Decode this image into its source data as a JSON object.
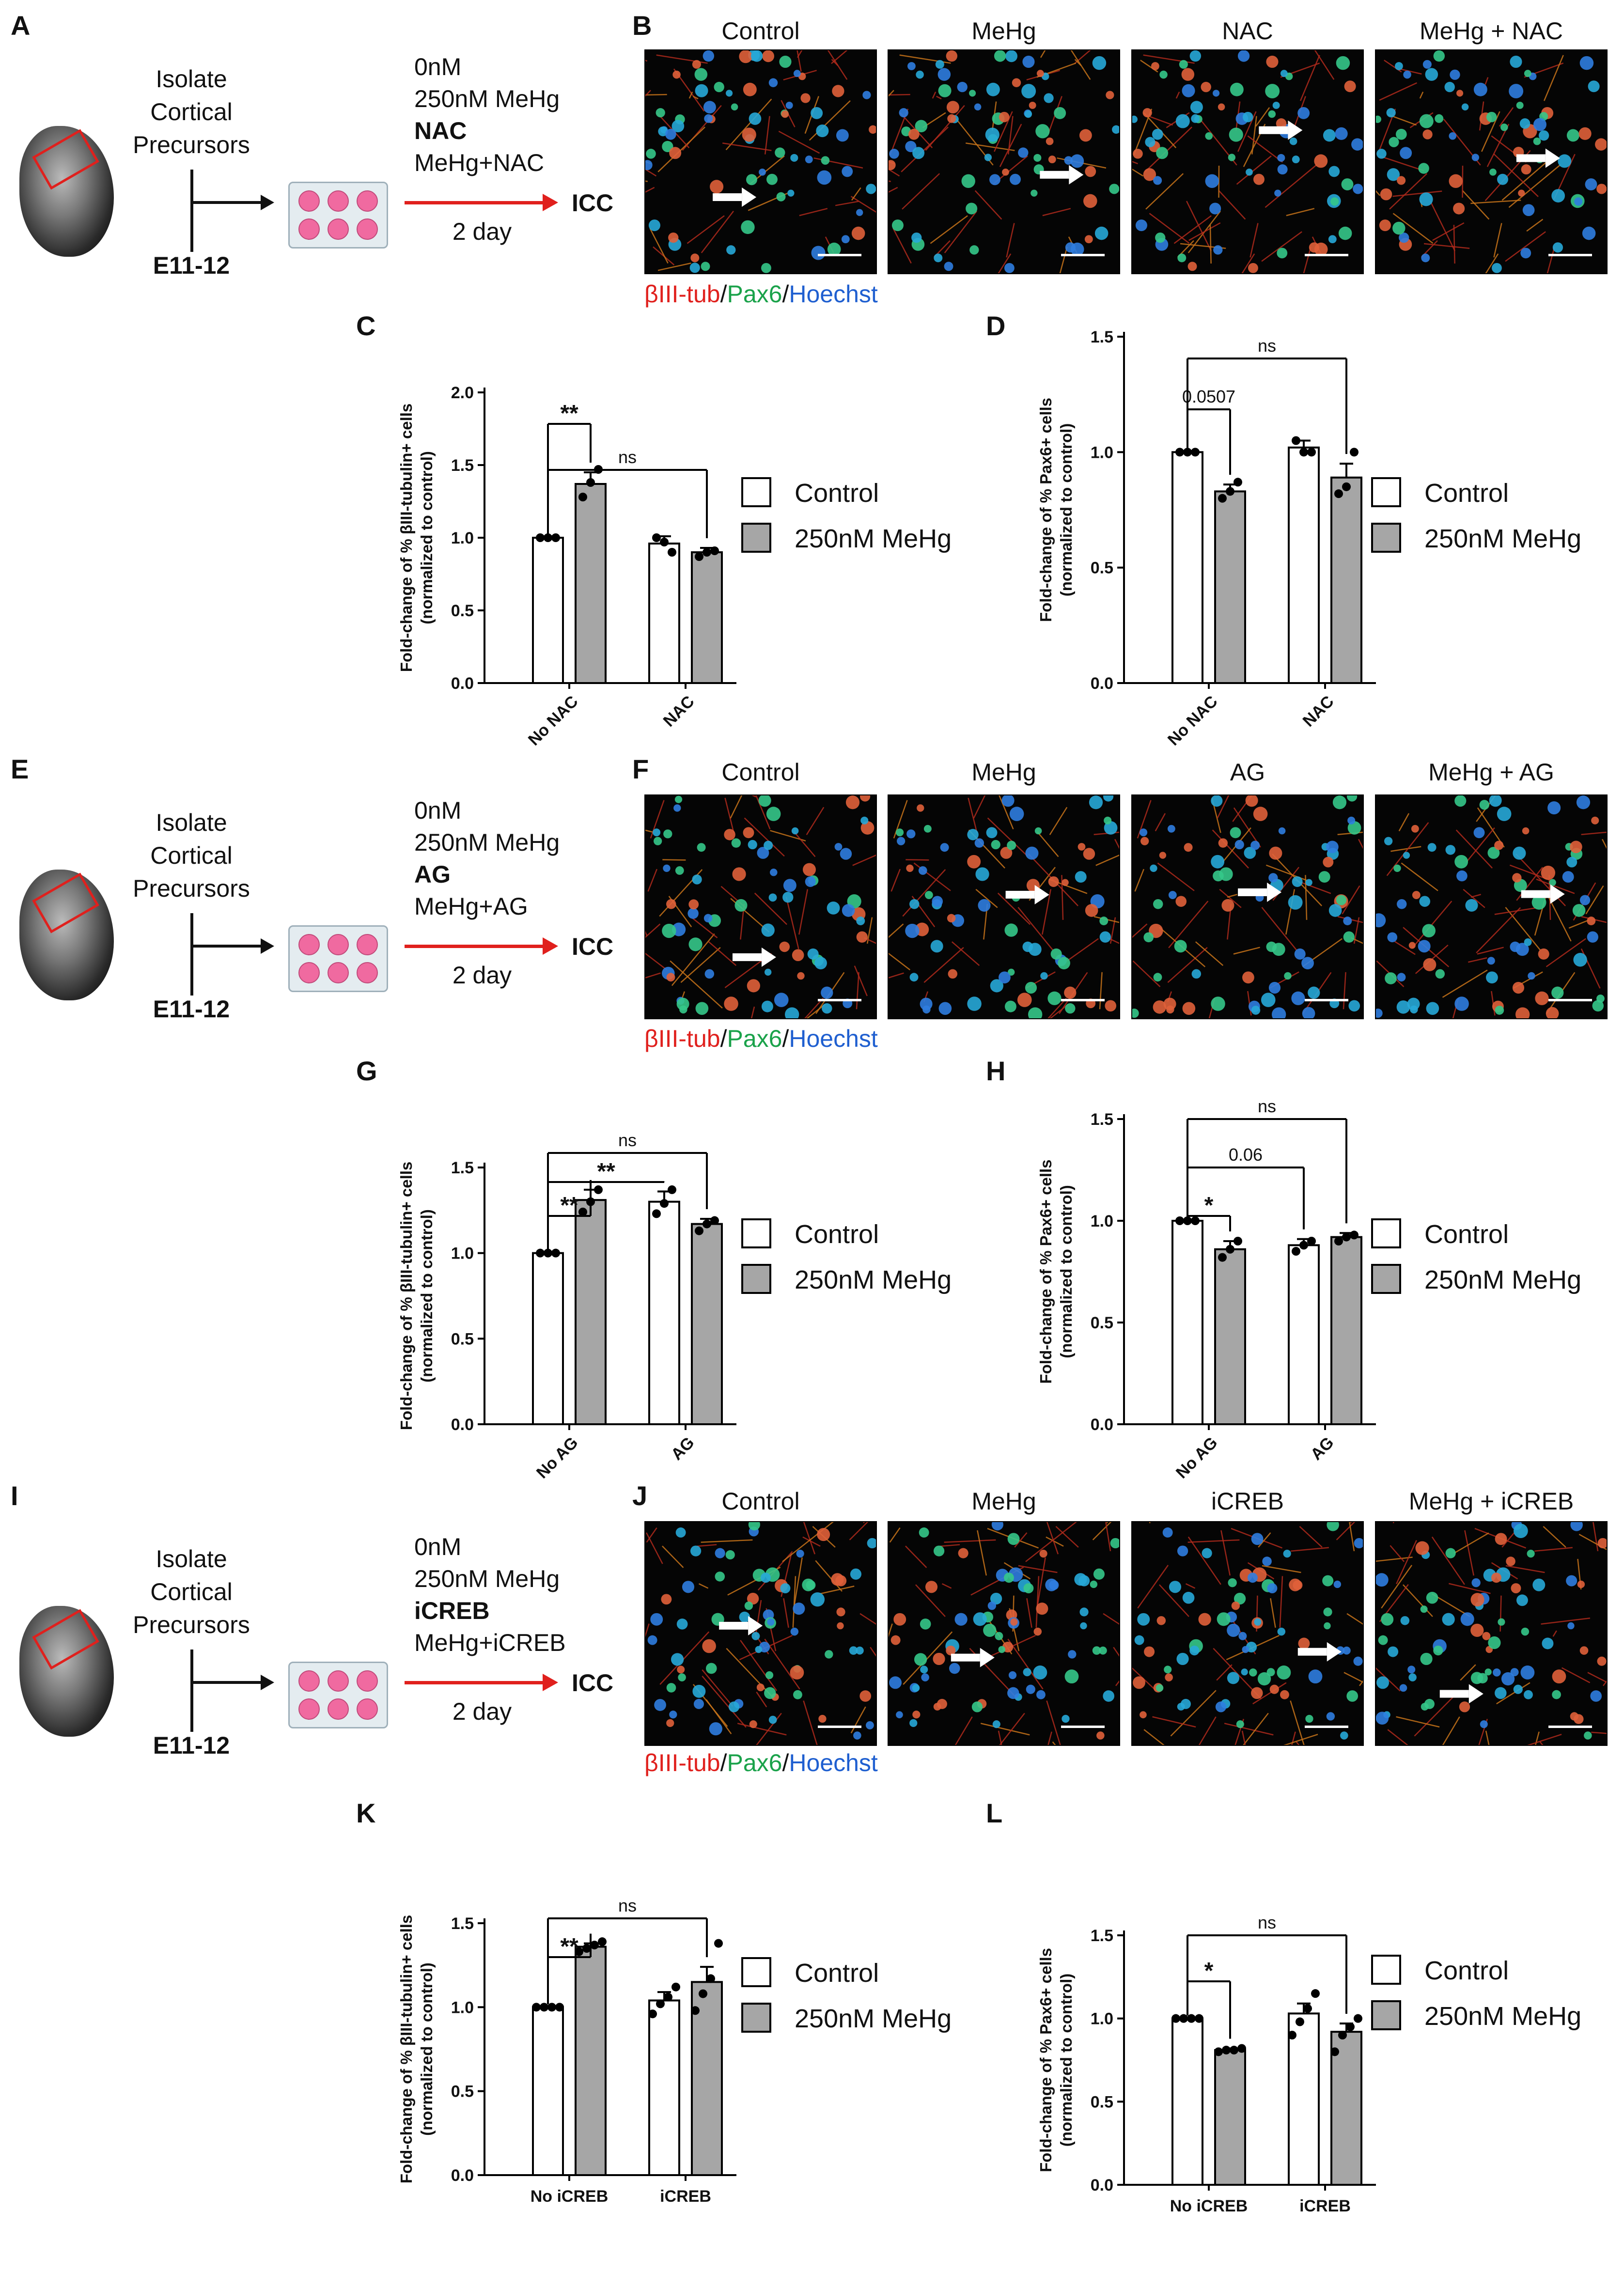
{
  "schematics": [
    {
      "id": "A",
      "step1": [
        "Isolate",
        "Cortical",
        "Precursors"
      ],
      "age": "E11-12",
      "conds": [
        "0nM",
        "250nM MeHg",
        "NAC",
        "MeHg+NAC"
      ],
      "bold_index": 2,
      "duration": "2 day",
      "endpoint": "ICC"
    },
    {
      "id": "E",
      "step1": [
        "Isolate",
        "Cortical",
        "Precursors"
      ],
      "age": "E11-12",
      "conds": [
        "0nM",
        "250nM MeHg",
        "AG",
        "MeHg+AG"
      ],
      "bold_index": 2,
      "duration": "2 day",
      "endpoint": "ICC"
    },
    {
      "id": "I",
      "step1": [
        "Isolate",
        "Cortical",
        "Precursors"
      ],
      "age": "E11-12",
      "conds": [
        "0nM",
        "250nM MeHg",
        "iCREB",
        "MeHg+iCREB"
      ],
      "bold_index": 2,
      "duration": "2 day",
      "endpoint": "ICC"
    }
  ],
  "micro_panels": [
    {
      "id": "B",
      "titles": [
        "Control",
        "MeHg",
        "NAC",
        "MeHg + NAC"
      ]
    },
    {
      "id": "F",
      "titles": [
        "Control",
        "MeHg",
        "AG",
        "MeHg + AG"
      ]
    },
    {
      "id": "J",
      "titles": [
        "Control",
        "MeHg",
        "iCREB",
        "MeHg + iCREB"
      ]
    }
  ],
  "stain_label": {
    "part1": "βIII-tub",
    "sep1": "/",
    "part2": "Pax6",
    "sep2": "/",
    "part3": "Hoechst",
    "colors": {
      "red": "#e0201d",
      "green": "#1aa24a",
      "blue": "#1f5fd0"
    }
  },
  "legend": {
    "control": "Control",
    "mehg": "250nM MeHg",
    "colors": {
      "control": "#ffffff",
      "mehg": "#a6a6a6"
    }
  },
  "chart_data": [
    {
      "id": "C",
      "type": "bar",
      "ylabel": "Fold-change of % βIII-tubulin+ cells\n(normalized to control)",
      "ylabel_lines": [
        "Fold-change of % βIII-tubulin+ cells",
        "(normalized to control)"
      ],
      "ylim": [
        0,
        2.0
      ],
      "yticks": [
        "0.0",
        "0.5",
        "1.0",
        "1.5",
        "2.0"
      ],
      "categories": [
        "No NAC",
        "NAC"
      ],
      "series": [
        {
          "name": "Control",
          "values": [
            1.0,
            0.96
          ],
          "err": [
            0.01,
            0.05
          ],
          "points": [
            [
              1.0,
              1.0,
              1.0
            ],
            [
              1.0,
              0.97,
              0.9
            ]
          ]
        },
        {
          "name": "250nM MeHg",
          "values": [
            1.37,
            0.9
          ],
          "err": [
            0.08,
            0.03
          ],
          "points": [
            [
              1.28,
              1.38,
              1.47
            ],
            [
              0.87,
              0.9,
              0.91
            ]
          ]
        }
      ],
      "annotations": [
        {
          "text": "**",
          "from": [
            0,
            0
          ],
          "to": [
            0,
            1
          ]
        },
        {
          "text": "ns",
          "from": [
            0,
            0
          ],
          "to": [
            1,
            1
          ]
        }
      ]
    },
    {
      "id": "D",
      "type": "bar",
      "ylabel_lines": [
        "Fold-change of % Pax6+ cells",
        "(normalized to control)"
      ],
      "ylim": [
        0,
        1.5
      ],
      "yticks": [
        "0.0",
        "0.5",
        "1.0",
        "1.5"
      ],
      "categories": [
        "No NAC",
        "NAC"
      ],
      "series": [
        {
          "name": "Control",
          "values": [
            1.0,
            1.02
          ],
          "err": [
            0.0,
            0.03
          ],
          "points": [
            [
              1.0,
              1.0,
              1.0
            ],
            [
              1.05,
              1.0,
              1.0
            ]
          ]
        },
        {
          "name": "250nM MeHg",
          "values": [
            0.83,
            0.89
          ],
          "err": [
            0.03,
            0.06
          ],
          "points": [
            [
              0.8,
              0.83,
              0.87
            ],
            [
              0.82,
              0.85,
              1.0
            ]
          ]
        }
      ],
      "annotations": [
        {
          "text": "0.0507",
          "from": [
            0,
            0
          ],
          "to": [
            0,
            1
          ]
        },
        {
          "text": "ns",
          "from": [
            0,
            0
          ],
          "to": [
            1,
            1
          ]
        }
      ]
    },
    {
      "id": "G",
      "type": "bar",
      "ylabel_lines": [
        "Fold-change of % βIII-tubulin+ cells",
        "(normalized to control)"
      ],
      "ylim": [
        0,
        1.5
      ],
      "yticks": [
        "0.0",
        "0.5",
        "1.0",
        "1.5"
      ],
      "categories": [
        "No AG",
        "AG"
      ],
      "series": [
        {
          "name": "Control",
          "values": [
            1.0,
            1.3
          ],
          "err": [
            0.0,
            0.06
          ],
          "points": [
            [
              1.0,
              1.0,
              1.0
            ],
            [
              1.23,
              1.29,
              1.37
            ]
          ]
        },
        {
          "name": "250nM MeHg",
          "values": [
            1.31,
            1.17
          ],
          "err": [
            0.06,
            0.03
          ],
          "points": [
            [
              1.24,
              1.3,
              1.37
            ],
            [
              1.13,
              1.17,
              1.19
            ]
          ]
        }
      ],
      "annotations": [
        {
          "text": "**",
          "from": [
            0,
            0
          ],
          "to": [
            0,
            1
          ]
        },
        {
          "text": "**",
          "from": [
            0,
            0
          ],
          "to": [
            1,
            0
          ]
        },
        {
          "text": "ns",
          "from": [
            0,
            0
          ],
          "to": [
            1,
            1
          ]
        }
      ]
    },
    {
      "id": "H",
      "type": "bar",
      "ylabel_lines": [
        "Fold-change of % Pax6+ cells",
        "(normalized to control)"
      ],
      "ylim": [
        0,
        1.5
      ],
      "yticks": [
        "0.0",
        "0.5",
        "1.0",
        "1.5"
      ],
      "categories": [
        "No AG",
        "AG"
      ],
      "series": [
        {
          "name": "Control",
          "values": [
            1.0,
            0.88
          ],
          "err": [
            0.0,
            0.03
          ],
          "points": [
            [
              1.0,
              1.0,
              1.0
            ],
            [
              0.85,
              0.88,
              0.9
            ]
          ]
        },
        {
          "name": "250nM MeHg",
          "values": [
            0.86,
            0.92
          ],
          "err": [
            0.04,
            0.02
          ],
          "points": [
            [
              0.82,
              0.86,
              0.9
            ],
            [
              0.9,
              0.92,
              0.93
            ]
          ]
        }
      ],
      "annotations": [
        {
          "text": "*",
          "from": [
            0,
            0
          ],
          "to": [
            0,
            1
          ]
        },
        {
          "text": "0.06",
          "from": [
            0,
            0
          ],
          "to": [
            1,
            0
          ]
        },
        {
          "text": "ns",
          "from": [
            0,
            0
          ],
          "to": [
            1,
            1
          ]
        }
      ]
    },
    {
      "id": "K",
      "type": "bar",
      "ylabel_lines": [
        "Fold-change of % βIII-tubulin+ cells",
        "(normalized to control)"
      ],
      "ylim": [
        0,
        1.5
      ],
      "yticks": [
        "0.0",
        "0.5",
        "1.0",
        "1.5"
      ],
      "categories": [
        "No iCREB",
        "iCREB"
      ],
      "series": [
        {
          "name": "Control",
          "values": [
            1.0,
            1.04
          ],
          "err": [
            0.0,
            0.05
          ],
          "points": [
            [
              1.0,
              1.0,
              1.0,
              1.0
            ],
            [
              0.96,
              1.02,
              1.06,
              1.12
            ]
          ]
        },
        {
          "name": "250nM MeHg",
          "values": [
            1.36,
            1.15
          ],
          "err": [
            0.02,
            0.09
          ],
          "points": [
            [
              1.33,
              1.35,
              1.37,
              1.39
            ],
            [
              0.98,
              1.08,
              1.17,
              1.38
            ]
          ]
        }
      ],
      "annotations": [
        {
          "text": "**",
          "from": [
            0,
            0
          ],
          "to": [
            0,
            1
          ]
        },
        {
          "text": "ns",
          "from": [
            0,
            0
          ],
          "to": [
            1,
            1
          ]
        }
      ]
    },
    {
      "id": "L",
      "type": "bar",
      "ylabel_lines": [
        "Fold-change of % Pax6+ cells",
        "(normalized to control)"
      ],
      "ylim": [
        0,
        1.5
      ],
      "yticks": [
        "0.0",
        "0.5",
        "1.0",
        "1.5"
      ],
      "categories": [
        "No iCREB",
        "iCREB"
      ],
      "series": [
        {
          "name": "Control",
          "values": [
            1.0,
            1.03
          ],
          "err": [
            0.0,
            0.06
          ],
          "points": [
            [
              1.0,
              1.0,
              1.0,
              1.0
            ],
            [
              0.9,
              0.98,
              1.06,
              1.15
            ]
          ]
        },
        {
          "name": "250nM MeHg",
          "values": [
            0.81,
            0.92
          ],
          "err": [
            0.01,
            0.05
          ],
          "points": [
            [
              0.8,
              0.81,
              0.81,
              0.82
            ],
            [
              0.8,
              0.9,
              0.95,
              1.0
            ]
          ]
        }
      ],
      "annotations": [
        {
          "text": "*",
          "from": [
            0,
            0
          ],
          "to": [
            0,
            1
          ]
        },
        {
          "text": "ns",
          "from": [
            0,
            0
          ],
          "to": [
            1,
            1
          ]
        }
      ]
    }
  ]
}
